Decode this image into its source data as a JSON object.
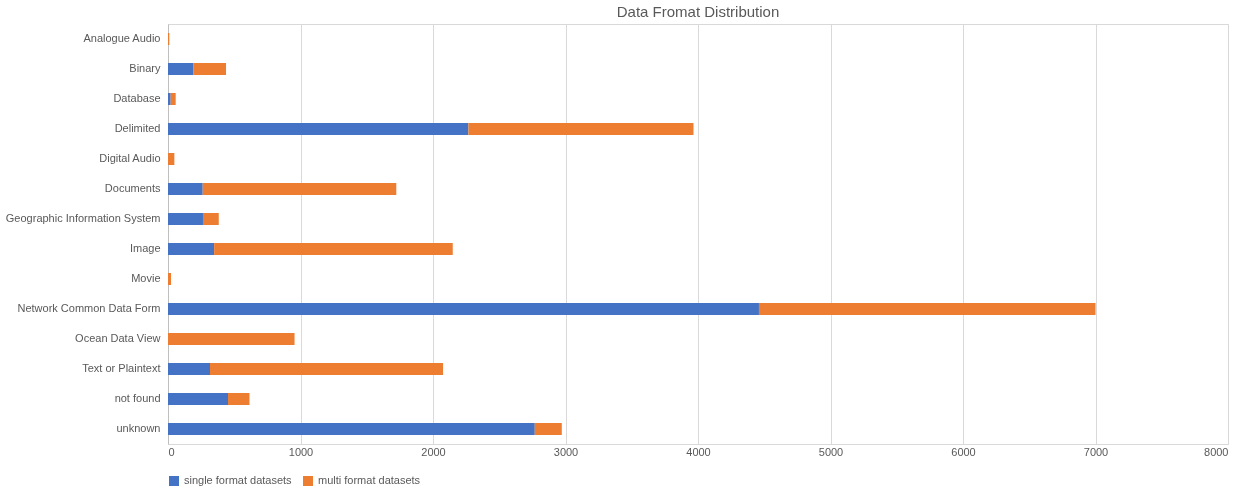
{
  "chart_data": {
    "type": "bar",
    "orientation": "horizontal",
    "stacked": true,
    "title": "Data Fromat Distribution",
    "categories": [
      "Analogue Audio",
      "Binary",
      "Database",
      "Delimited",
      "Digital Audio",
      "Documents",
      "Geographic Information System",
      "Image",
      "Movie",
      "Network Common Data Form",
      "Ocean Data View",
      "Text or Plaintext",
      "not found",
      "unknown"
    ],
    "series": [
      {
        "name": "single format datasets",
        "color": "#4472c4",
        "values": [
          0,
          190,
          20,
          2267,
          0,
          262,
          264,
          348,
          0,
          4460,
          0,
          317,
          453,
          2768
        ]
      },
      {
        "name": "multi format datasets",
        "color": "#ed7d31",
        "values": [
          10,
          248,
          38,
          1699,
          48,
          1461,
          119,
          1801,
          23,
          2540,
          955,
          1759,
          162,
          204
        ]
      }
    ],
    "xlim": [
      0,
      8000
    ],
    "xticks": [
      0,
      1000,
      2000,
      3000,
      4000,
      5000,
      6000,
      7000,
      8000
    ],
    "grid": "x",
    "legend": "bottom"
  }
}
